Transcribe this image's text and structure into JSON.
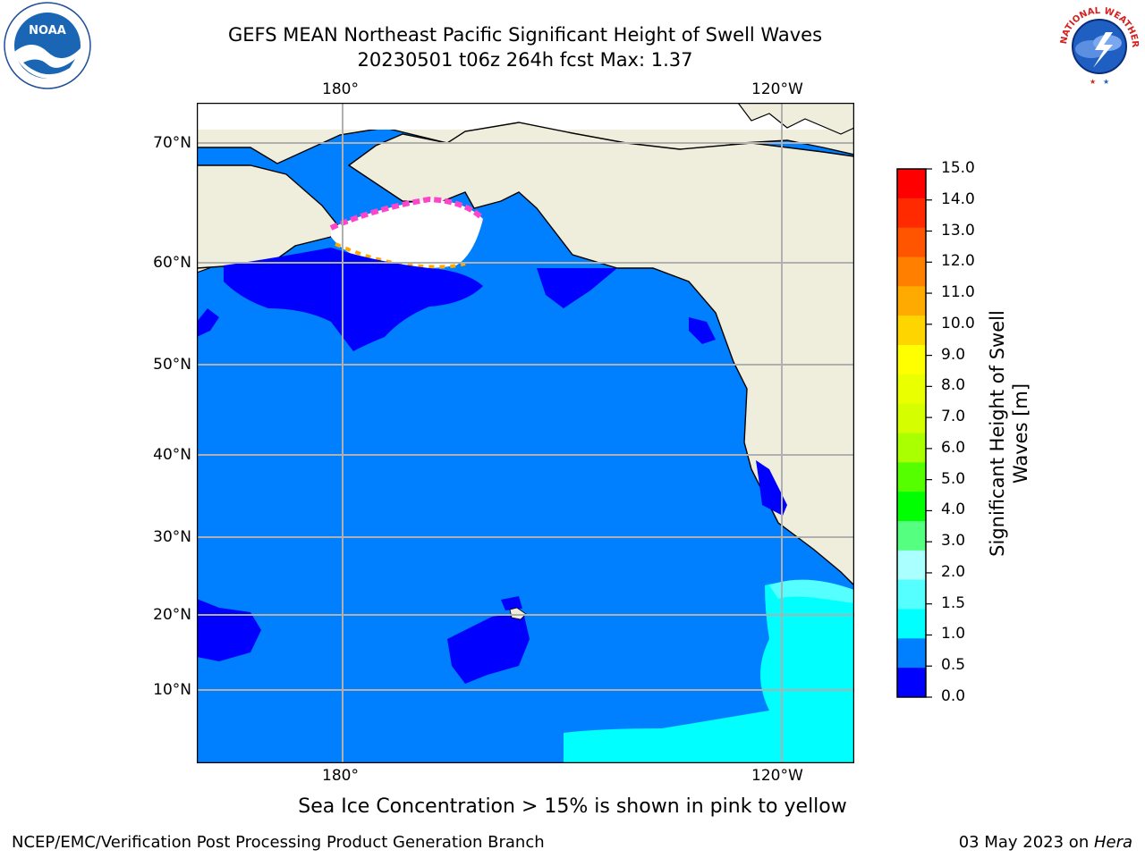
{
  "header": {
    "title_line1": "GEFS MEAN Northeast Pacific Significant Height of Swell Waves",
    "title_line2": "20230501 t06z 264h fcst   Max: 1.37"
  },
  "logos": {
    "noaa_text": "NOAA",
    "nws_text": "NATIONAL WEATHER SERVICE"
  },
  "map": {
    "top_lon_labels": [
      "180°",
      "120°W"
    ],
    "bottom_lon_labels": [
      "180°",
      "120°W"
    ],
    "lat_labels": [
      "70°N",
      "60°N",
      "50°N",
      "40°N",
      "30°N",
      "20°N",
      "10°N"
    ]
  },
  "colorbar": {
    "title": "Significant Height of Swell Waves [m]",
    "title_line1": "Significant Height of Swell",
    "title_line2": "Waves [m]",
    "ticks": [
      "15.0",
      "14.0",
      "13.0",
      "12.0",
      "11.0",
      "10.0",
      "9.0",
      "8.0",
      "7.0",
      "6.0",
      "5.0",
      "4.0",
      "3.0",
      "2.0",
      "1.5",
      "1.0",
      "0.5",
      "0.0"
    ],
    "colors_top_to_bottom": [
      "#ff0000",
      "#ff2a00",
      "#ff5500",
      "#ff7f00",
      "#ffaa00",
      "#ffd500",
      "#ffff00",
      "#eaff00",
      "#d5ff00",
      "#aaff00",
      "#55ff00",
      "#00ff00",
      "#55ff80",
      "#aaffff",
      "#55ffff",
      "#00ffff",
      "#0080ff",
      "#0000ff"
    ]
  },
  "legend_note": "Sea Ice Concentration > 15% is shown in pink to yellow",
  "footer": {
    "left": "NCEP/EMC/Verification Post Processing Product Generation Branch",
    "right_date": "03 May 2023 on ",
    "right_host": "Hera"
  }
}
